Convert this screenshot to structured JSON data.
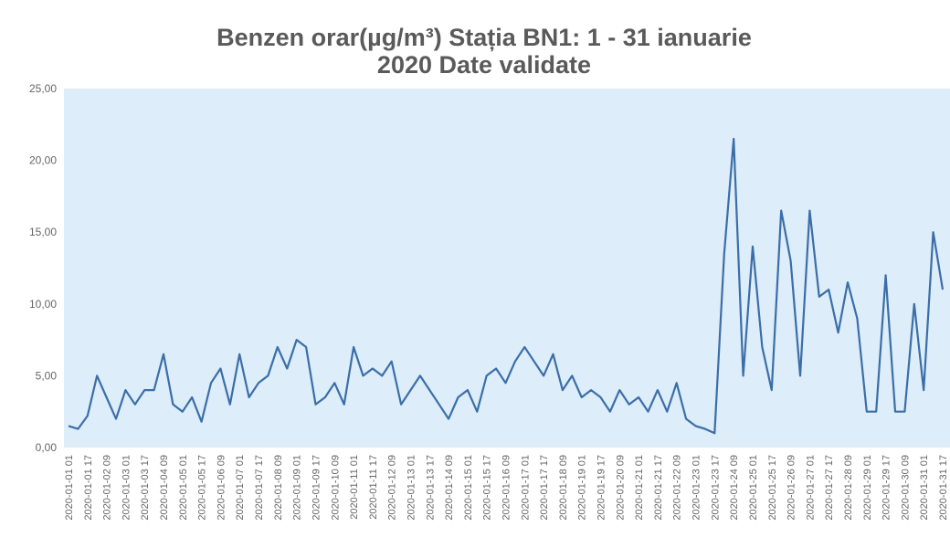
{
  "chart_data": {
    "type": "line",
    "title": [
      "Benzen orar(µg/m³) Stația BN1: 1 - 31 ianuarie",
      "2020 Date validate"
    ],
    "categories": [
      "2020-01-01 01",
      null,
      "2020-01-01 17",
      null,
      "2020-01-02 09",
      null,
      "2020-01-03 01",
      null,
      "2020-01-03 17",
      null,
      "2020-01-04 09",
      null,
      "2020-01-05 01",
      null,
      "2020-01-05 17",
      null,
      "2020-01-06 09",
      null,
      "2020-01-07 01",
      null,
      "2020-01-07 17",
      null,
      "2020-01-08 09",
      null,
      "2020-01-09 01",
      null,
      "2020-01-09 17",
      null,
      "2020-01-10 09",
      null,
      "2020-01-11 01",
      null,
      "2020-01-11 17",
      null,
      "2020-01-12 09",
      null,
      "2020-01-13 01",
      null,
      "2020-01-13 17",
      null,
      "2020-01-14 09",
      null,
      "2020-01-15 01",
      null,
      "2020-01-15 17",
      null,
      "2020-01-16 09",
      null,
      "2020-01-17 01",
      null,
      "2020-01-17 17",
      null,
      "2020-01-18 09",
      null,
      "2020-01-19 01",
      null,
      "2020-01-19 17",
      null,
      "2020-01-20 09",
      null,
      "2020-01-21 01",
      null,
      "2020-01-21 17",
      null,
      "2020-01-22 09",
      null,
      "2020-01-23 01",
      null,
      "2020-01-23 17",
      null,
      "2020-01-24 09",
      null,
      "2020-01-25 01",
      null,
      "2020-01-25 17",
      null,
      "2020-01-26 09",
      null,
      "2020-01-27 01",
      null,
      "2020-01-27 17",
      null,
      "2020-01-28 09",
      null,
      "2020-01-29 01",
      null,
      "2020-01-29 17",
      null,
      "2020-01-30 09",
      null,
      "2020-01-31 01",
      null,
      "2020-01-31 17"
    ],
    "series": [
      {
        "name": "Benzen",
        "color": "#3b6ea8",
        "values": [
          1.5,
          1.3,
          2.2,
          5,
          3.5,
          2,
          4,
          3,
          4,
          4,
          6.5,
          3,
          2.5,
          3.5,
          1.8,
          4.5,
          5.5,
          3,
          6.5,
          3.5,
          4.5,
          5,
          7,
          5.5,
          7.5,
          7,
          3,
          3.5,
          4.5,
          3,
          7,
          5,
          5.5,
          5,
          6,
          3,
          4,
          5,
          4,
          3,
          2,
          3.5,
          4,
          2.5,
          5,
          5.5,
          4.5,
          6,
          7,
          6,
          5,
          6.5,
          4,
          5,
          3.5,
          4,
          3.5,
          2.5,
          4,
          3,
          3.5,
          2.5,
          4,
          2.5,
          4.5,
          2,
          1.5,
          1.3,
          1,
          13.5,
          21.5,
          5,
          14,
          7,
          4,
          16.5,
          13,
          5,
          16.5,
          10.5,
          11,
          8,
          11.5,
          9,
          2.5,
          2.5,
          12,
          2.5,
          2.5,
          10,
          4,
          15,
          11
        ]
      }
    ],
    "ylim": [
      0,
      25
    ],
    "yticks": [
      {
        "value": 0,
        "label": "0,00"
      },
      {
        "value": 5,
        "label": "5,00"
      },
      {
        "value": 10,
        "label": "10,00"
      },
      {
        "value": 15,
        "label": "15,00"
      },
      {
        "value": 20,
        "label": "20,00"
      },
      {
        "value": 25,
        "label": "25,00"
      }
    ]
  }
}
